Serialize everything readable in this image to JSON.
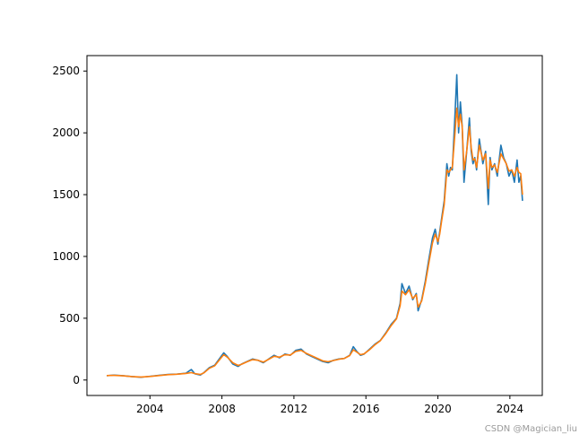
{
  "chart_data": {
    "type": "line",
    "title": "",
    "xlabel": "",
    "ylabel": "",
    "xlim": [
      2000.5,
      2025.8
    ],
    "ylim": [
      -125,
      2625
    ],
    "xticks": [
      2004,
      2008,
      2012,
      2016,
      2020,
      2024
    ],
    "yticks": [
      0,
      500,
      1000,
      1500,
      2000,
      2500
    ],
    "grid": false,
    "legend": "none",
    "series": [
      {
        "color": "#1f77b4",
        "x": [
          2001.6,
          2002.0,
          2002.5,
          2003.0,
          2003.5,
          2004.0,
          2004.5,
          2005.0,
          2005.5,
          2006.0,
          2006.3,
          2006.5,
          2006.8,
          2007.0,
          2007.3,
          2007.6,
          2007.9,
          2008.1,
          2008.3,
          2008.6,
          2008.9,
          2009.1,
          2009.4,
          2009.7,
          2010.0,
          2010.3,
          2010.6,
          2010.9,
          2011.2,
          2011.5,
          2011.8,
          2012.1,
          2012.4,
          2012.7,
          2013.0,
          2013.3,
          2013.6,
          2013.9,
          2014.2,
          2014.5,
          2014.8,
          2015.1,
          2015.3,
          2015.5,
          2015.7,
          2015.9,
          2016.2,
          2016.5,
          2016.8,
          2017.1,
          2017.4,
          2017.7,
          2017.9,
          2018.0,
          2018.2,
          2018.4,
          2018.6,
          2018.8,
          2018.9,
          2019.1,
          2019.3,
          2019.5,
          2019.7,
          2019.85,
          2020.0,
          2020.1,
          2020.2,
          2020.35,
          2020.5,
          2020.6,
          2020.7,
          2020.8,
          2020.95,
          2021.05,
          2021.15,
          2021.25,
          2021.35,
          2021.45,
          2021.6,
          2021.75,
          2021.85,
          2021.95,
          2022.05,
          2022.15,
          2022.3,
          2022.5,
          2022.65,
          2022.8,
          2022.9,
          2023.0,
          2023.15,
          2023.3,
          2023.5,
          2023.65,
          2023.8,
          2023.95,
          2024.1,
          2024.25,
          2024.4,
          2024.5,
          2024.6,
          2024.7
        ],
        "y": [
          35,
          40,
          35,
          28,
          22,
          30,
          38,
          45,
          48,
          55,
          85,
          50,
          40,
          60,
          100,
          120,
          180,
          220,
          190,
          130,
          110,
          130,
          150,
          170,
          160,
          140,
          170,
          200,
          180,
          210,
          200,
          240,
          250,
          210,
          190,
          170,
          150,
          140,
          160,
          170,
          175,
          200,
          270,
          230,
          200,
          210,
          250,
          290,
          320,
          380,
          450,
          500,
          620,
          780,
          700,
          760,
          650,
          700,
          560,
          650,
          800,
          980,
          1150,
          1220,
          1100,
          1200,
          1300,
          1450,
          1750,
          1650,
          1720,
          1700,
          2150,
          2470,
          2000,
          2250,
          2050,
          1600,
          1850,
          2120,
          1850,
          1750,
          1800,
          1700,
          1950,
          1750,
          1850,
          1420,
          1800,
          1700,
          1750,
          1650,
          1900,
          1800,
          1750,
          1650,
          1700,
          1600,
          1780,
          1600,
          1650,
          1450
        ]
      },
      {
        "color": "#ff7f0e",
        "x": [
          2001.6,
          2002.0,
          2002.5,
          2003.0,
          2003.5,
          2004.0,
          2004.5,
          2005.0,
          2005.5,
          2006.0,
          2006.3,
          2006.5,
          2006.8,
          2007.0,
          2007.3,
          2007.6,
          2007.9,
          2008.1,
          2008.3,
          2008.6,
          2008.9,
          2009.1,
          2009.4,
          2009.7,
          2010.0,
          2010.3,
          2010.6,
          2010.9,
          2011.2,
          2011.5,
          2011.8,
          2012.1,
          2012.4,
          2012.7,
          2013.0,
          2013.3,
          2013.6,
          2013.9,
          2014.2,
          2014.5,
          2014.8,
          2015.1,
          2015.3,
          2015.5,
          2015.7,
          2015.9,
          2016.2,
          2016.5,
          2016.8,
          2017.1,
          2017.4,
          2017.7,
          2017.9,
          2018.0,
          2018.2,
          2018.4,
          2018.6,
          2018.8,
          2018.9,
          2019.1,
          2019.3,
          2019.5,
          2019.7,
          2019.85,
          2020.0,
          2020.1,
          2020.2,
          2020.35,
          2020.5,
          2020.6,
          2020.7,
          2020.8,
          2020.95,
          2021.05,
          2021.15,
          2021.25,
          2021.35,
          2021.45,
          2021.6,
          2021.75,
          2021.85,
          2021.95,
          2022.05,
          2022.15,
          2022.3,
          2022.5,
          2022.65,
          2022.8,
          2022.9,
          2023.0,
          2023.15,
          2023.3,
          2023.5,
          2023.65,
          2023.8,
          2023.95,
          2024.1,
          2024.25,
          2024.4,
          2024.5,
          2024.6,
          2024.7
        ],
        "y": [
          36,
          38,
          34,
          28,
          24,
          29,
          36,
          43,
          47,
          53,
          60,
          52,
          45,
          58,
          95,
          115,
          170,
          205,
          185,
          140,
          118,
          128,
          148,
          165,
          160,
          145,
          168,
          192,
          185,
          205,
          202,
          232,
          240,
          215,
          195,
          175,
          155,
          148,
          158,
          168,
          175,
          198,
          245,
          225,
          205,
          212,
          245,
          285,
          318,
          375,
          440,
          495,
          600,
          720,
          690,
          730,
          660,
          690,
          590,
          640,
          780,
          950,
          1110,
          1180,
          1120,
          1180,
          1280,
          1420,
          1700,
          1680,
          1700,
          1720,
          2000,
          2200,
          2050,
          2150,
          2050,
          1700,
          1850,
          2050,
          1880,
          1780,
          1790,
          1720,
          1900,
          1780,
          1830,
          1550,
          1780,
          1720,
          1740,
          1680,
          1830,
          1790,
          1750,
          1690,
          1700,
          1650,
          1720,
          1680,
          1670,
          1500
        ]
      }
    ]
  },
  "watermark": "CSDN @Magician_liu"
}
